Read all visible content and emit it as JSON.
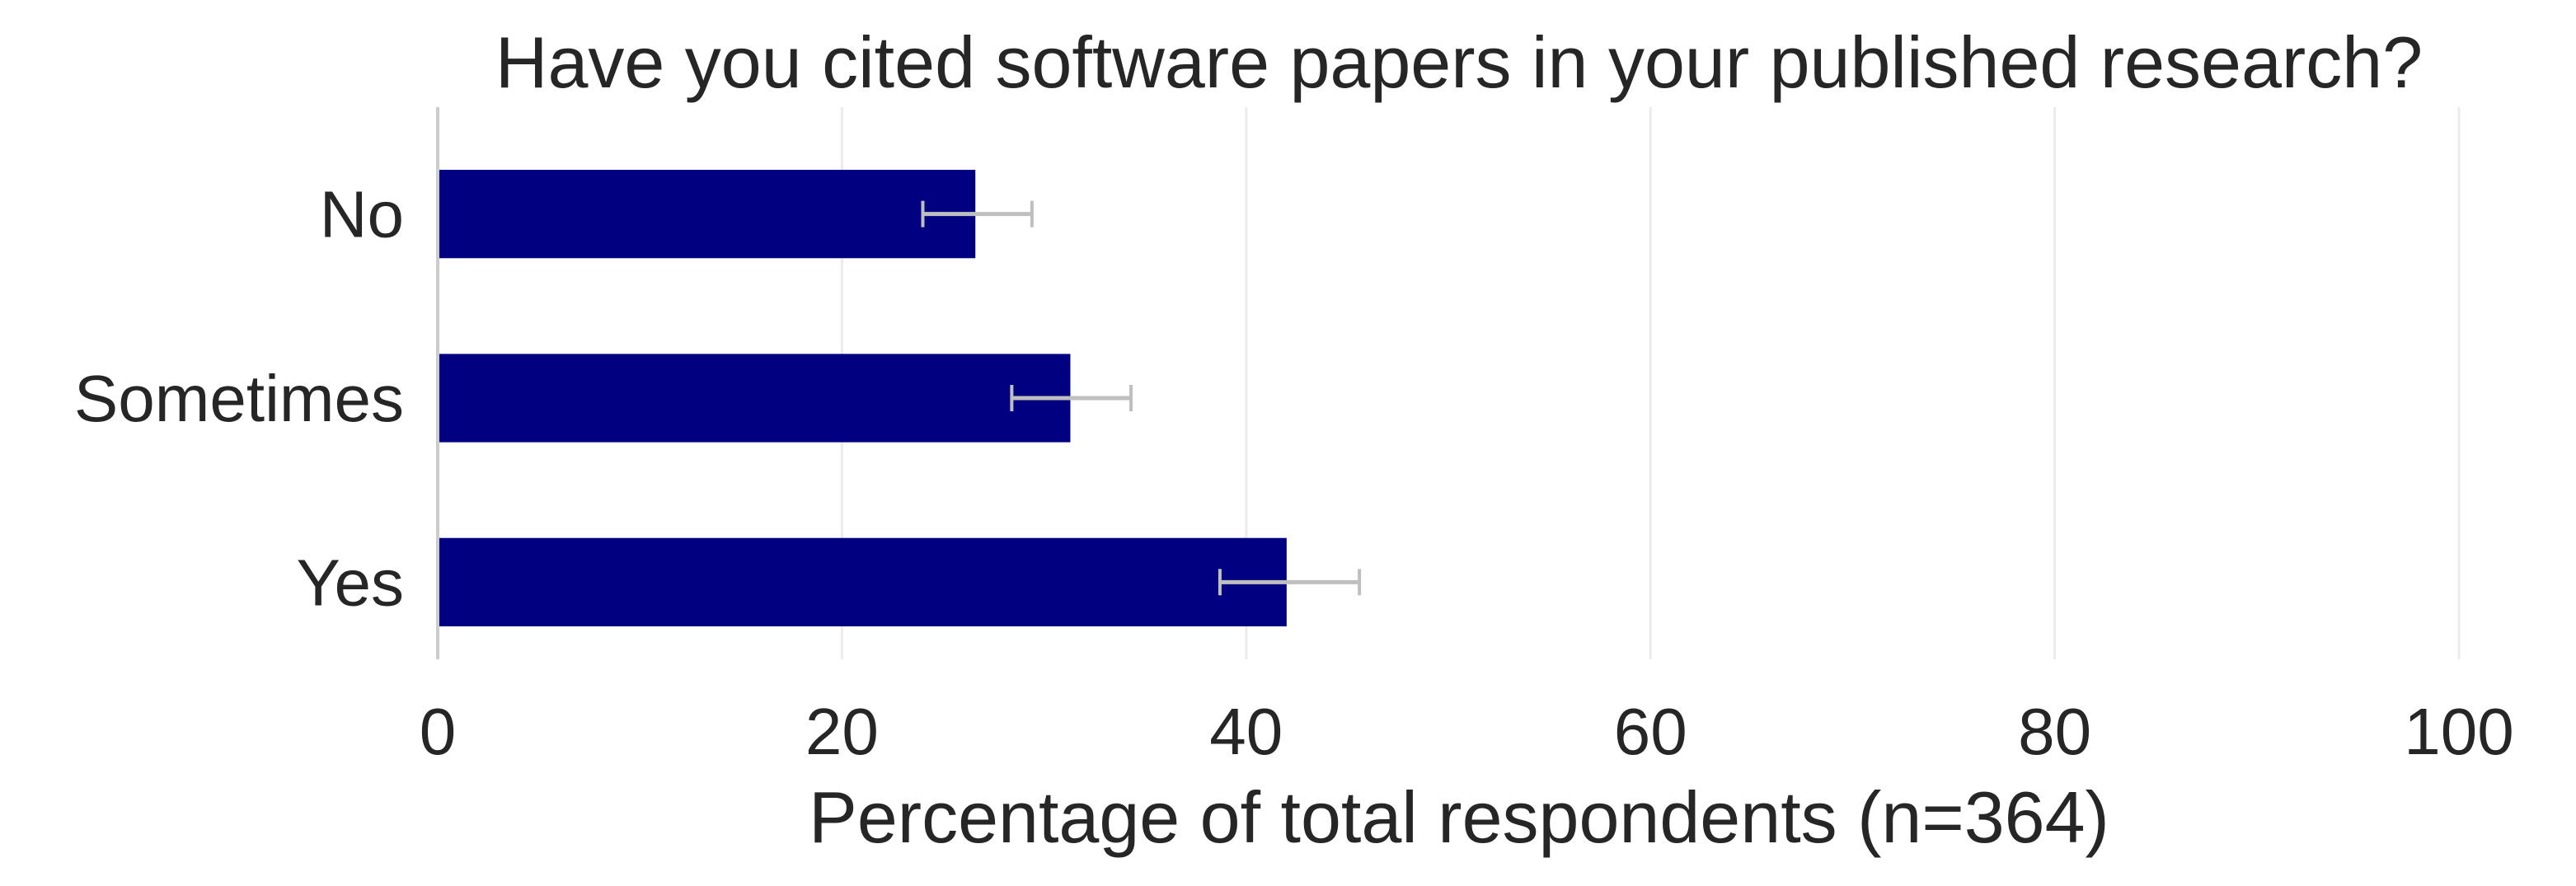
{
  "chart_data": {
    "type": "bar",
    "orientation": "horizontal",
    "title": "Have you cited software papers in your published research?",
    "xlabel": "Percentage of total respondents (n=364)",
    "ylabel": "",
    "categories": [
      "No",
      "Sometimes",
      "Yes"
    ],
    "values": [
      26.6,
      31.3,
      42.0
    ],
    "error_low": [
      24.0,
      28.4,
      38.7
    ],
    "error_high": [
      29.4,
      34.3,
      45.6
    ],
    "xlim": [
      0,
      100
    ],
    "xticks": [
      "0",
      "20",
      "40",
      "60",
      "80",
      "100"
    ],
    "grid": "vertical",
    "legend": "none",
    "colors": {
      "bar": "#000080",
      "error_bar": "#bfbfbf",
      "grid": "#ebebeb",
      "axis": "#cccccc",
      "text": "#262626"
    }
  }
}
